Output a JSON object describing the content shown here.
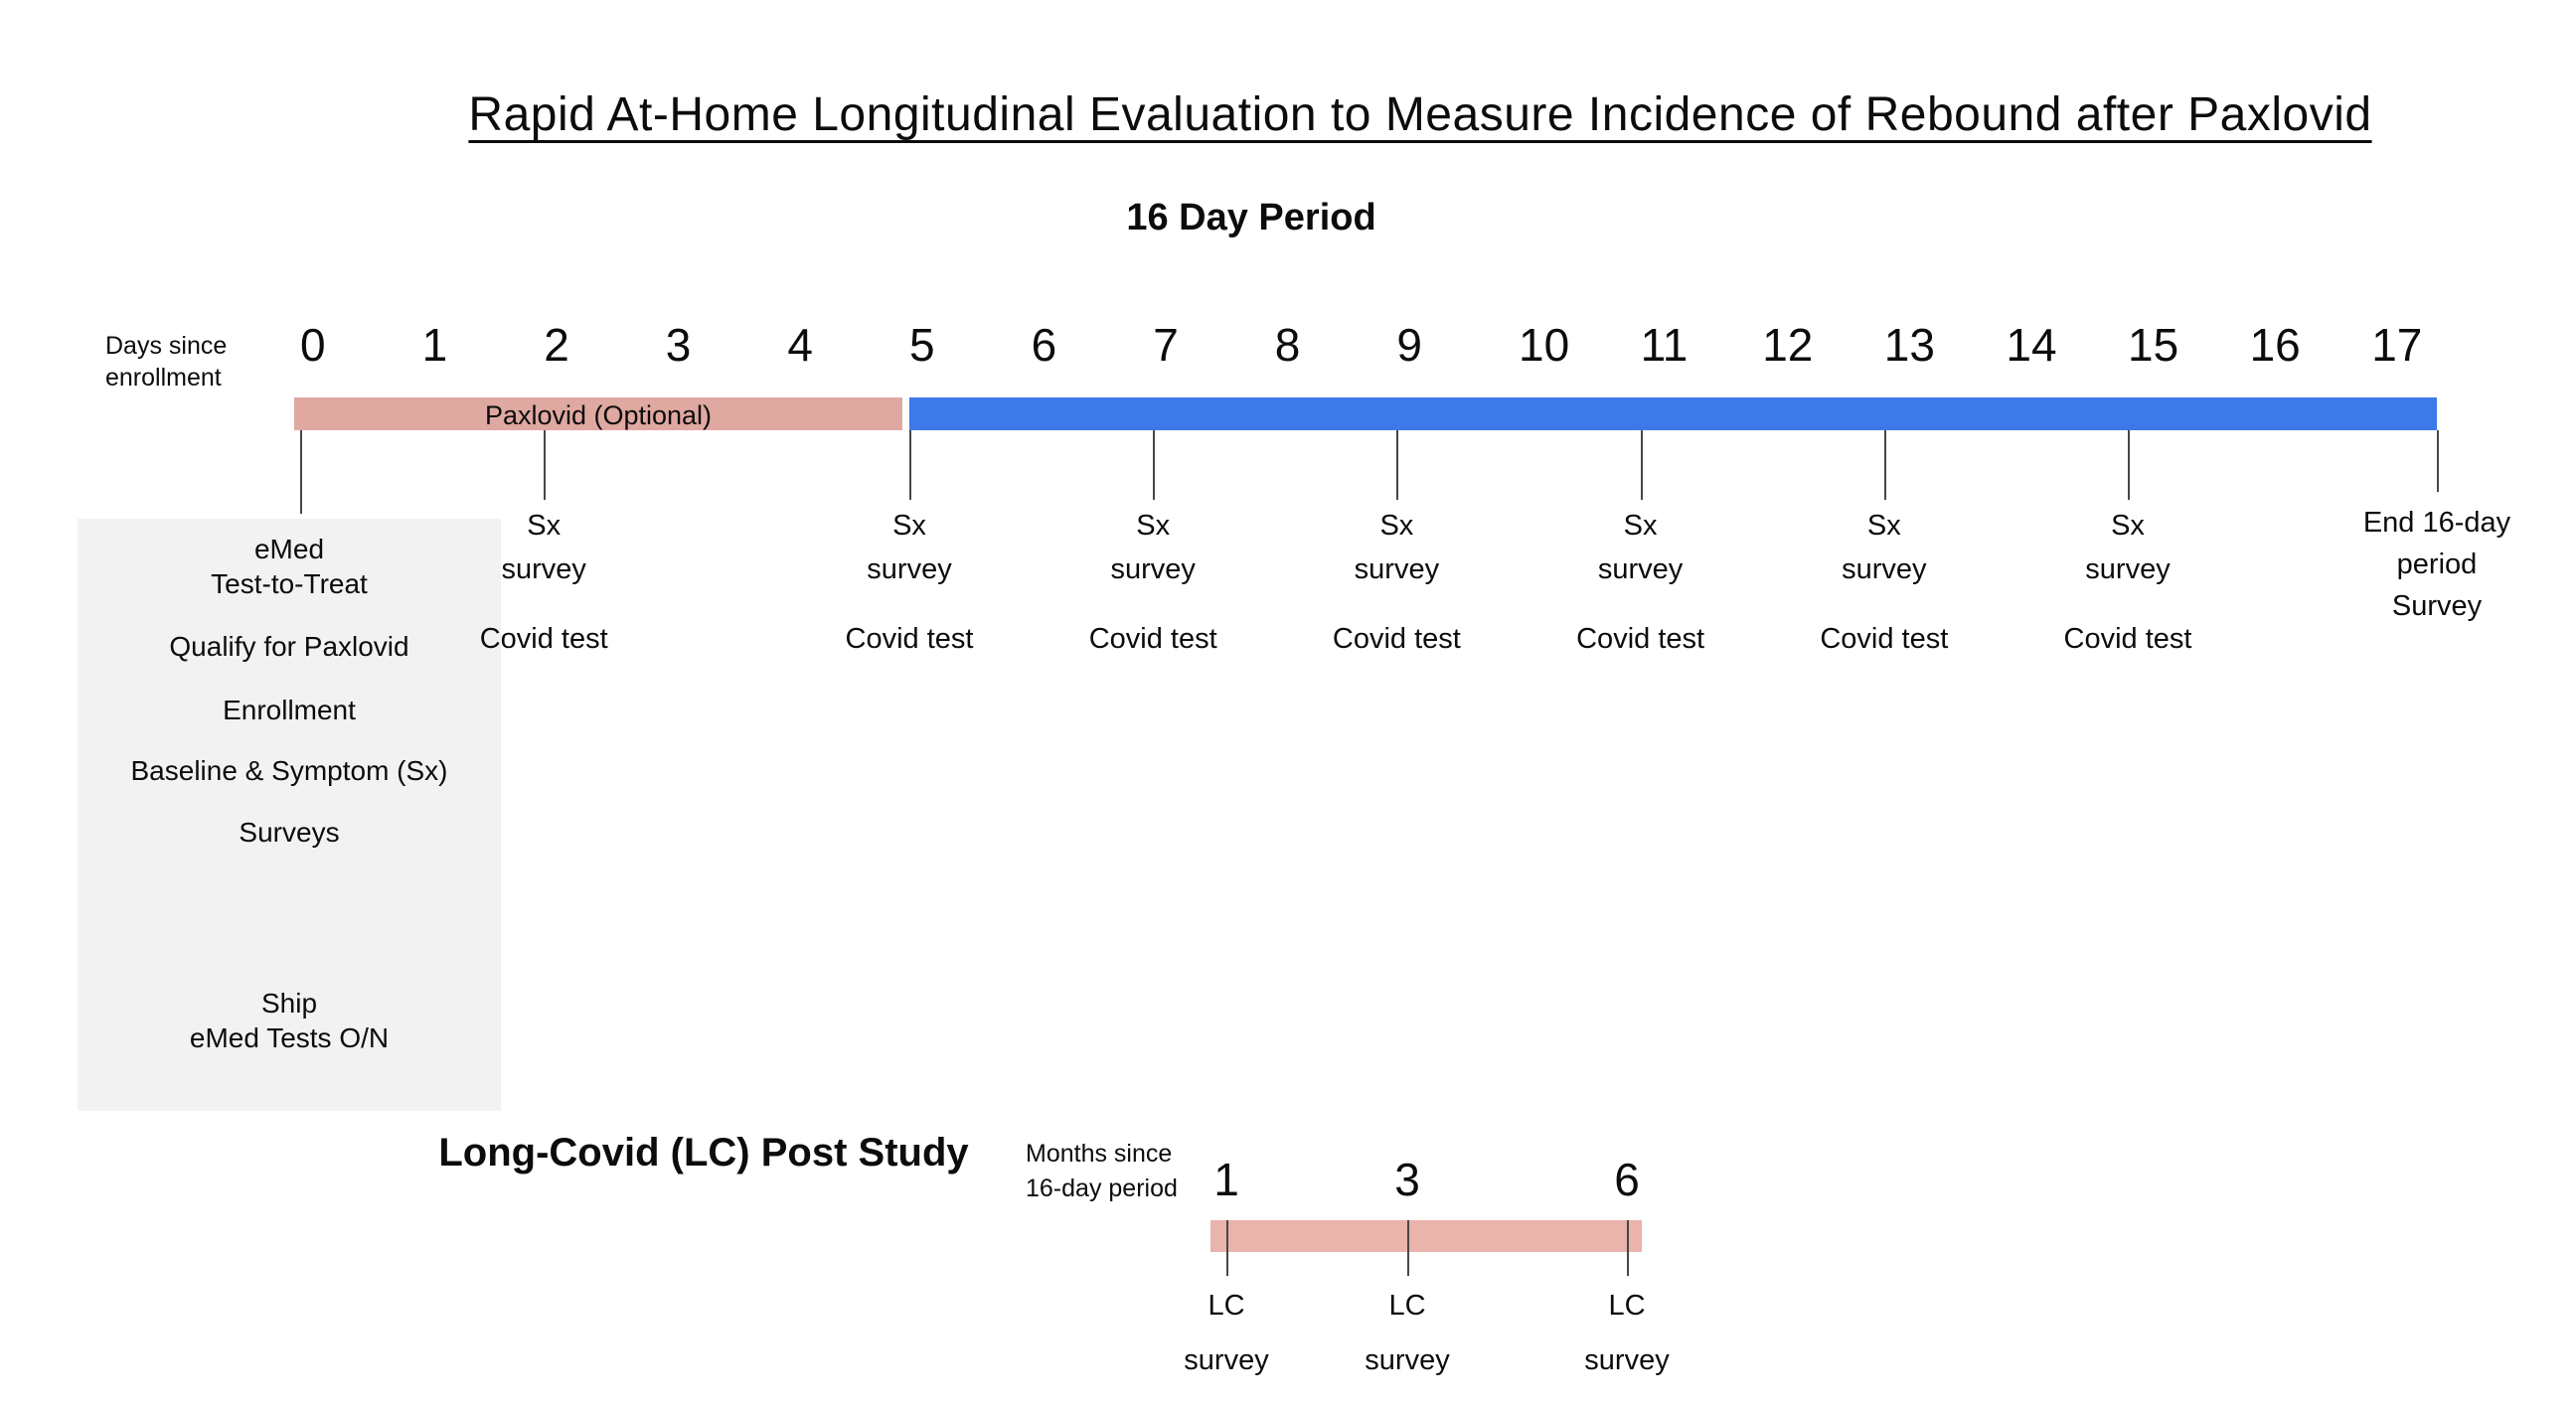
{
  "title": "Rapid At-Home Longitudinal Evaluation to Measure Incidence of Rebound after Paxlovid",
  "subtitle": "16 Day Period",
  "colors": {
    "paxlovid_pink": "#dfa8a1",
    "period_blue": "#3d79e8",
    "long_covid_pink": "#eab3ac",
    "box_gray": "#f2f2f2",
    "tick_gray": "#474747"
  },
  "timeline": {
    "axis_label": [
      "Days since",
      "enrollment"
    ],
    "days": [
      "0",
      "1",
      "2",
      "3",
      "4",
      "5",
      "6",
      "7",
      "8",
      "9",
      "10",
      "11",
      "12",
      "13",
      "14",
      "15",
      "16",
      "17"
    ],
    "tick_days": [
      0,
      2,
      5,
      7,
      9,
      11,
      13,
      15
    ],
    "survey_days": [
      2,
      5,
      7,
      9,
      11,
      13,
      15
    ],
    "paxlovid_label": "Paxlovid (Optional)",
    "survey_label": [
      "Sx",
      "survey"
    ],
    "covid_test_label": "Covid test",
    "end_label": [
      "End 16-day",
      "period",
      "Survey"
    ]
  },
  "enrollment_box": {
    "items": [
      {
        "lines": [
          "eMed",
          "Test-to-Treat"
        ]
      },
      {
        "lines": [
          "Qualify for Paxlovid"
        ]
      },
      {
        "lines": [
          "Enrollment"
        ]
      },
      {
        "lines": [
          "Baseline & Symptom (Sx)"
        ]
      },
      {
        "lines": [
          "Surveys"
        ]
      },
      {
        "lines": [
          "Ship",
          "eMed Tests O/N"
        ]
      }
    ]
  },
  "long_covid": {
    "title": "Long-Covid (LC) Post Study",
    "axis_label": [
      "Months since",
      "16-day period"
    ],
    "months": [
      "1",
      "3",
      "6"
    ],
    "survey_label": [
      "LC",
      "survey"
    ]
  }
}
